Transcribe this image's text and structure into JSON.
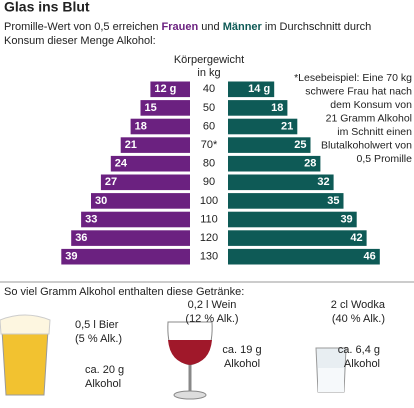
{
  "chart_data": {
    "type": "butterfly",
    "title": "Glas ins Blut",
    "subtitle_parts": [
      "Promille-Wert von 0,5 erreichen",
      "und",
      "im Durchschnitt durch",
      "Konsum dieser Menge Alkohol:"
    ],
    "category_title": [
      "Körpergewicht",
      "in kg"
    ],
    "categories": [
      "40",
      "50",
      "60",
      "70*",
      "80",
      "90",
      "100",
      "110",
      "120",
      "130"
    ],
    "series": [
      {
        "name": "Frauen",
        "color": "#6b2180",
        "values": [
          12,
          15,
          18,
          21,
          24,
          27,
          30,
          33,
          36,
          39
        ],
        "value_labels": [
          "12 g",
          "15",
          "18",
          "21",
          "24",
          "27",
          "30",
          "33",
          "36",
          "39"
        ]
      },
      {
        "name": "Männer",
        "color": "#0e5a56",
        "values": [
          14,
          18,
          21,
          25,
          28,
          32,
          35,
          39,
          42,
          46
        ],
        "value_labels": [
          "14 g",
          "18",
          "21",
          "25",
          "28",
          "32",
          "35",
          "39",
          "42",
          "46"
        ]
      }
    ],
    "note": [
      "*Lesebeispiel: Eine 70 kg",
      "schwere Frau hat nach",
      "dem Konsum von",
      "21 Gramm Alkohol",
      "im Schnitt einen",
      "Blutalkoholwert von",
      "0,5 Promille"
    ]
  },
  "drinks_section": {
    "title": "So viel Gramm Alkohol enthalten diese Getränke:",
    "drinks": [
      {
        "name": "0,5 l Bier",
        "strength": "(5 % Alk.)",
        "amount": "ca. 20 g",
        "unit": "Alkohol"
      },
      {
        "name": "0,2 l Wein",
        "strength": "(12 % Alk.)",
        "amount": "ca. 19 g",
        "unit": "Alkohol"
      },
      {
        "name": "2 cl Wodka",
        "strength": "(40 % Alk.)",
        "amount": "ca. 6,4 g",
        "unit": "Alkohol"
      }
    ]
  }
}
